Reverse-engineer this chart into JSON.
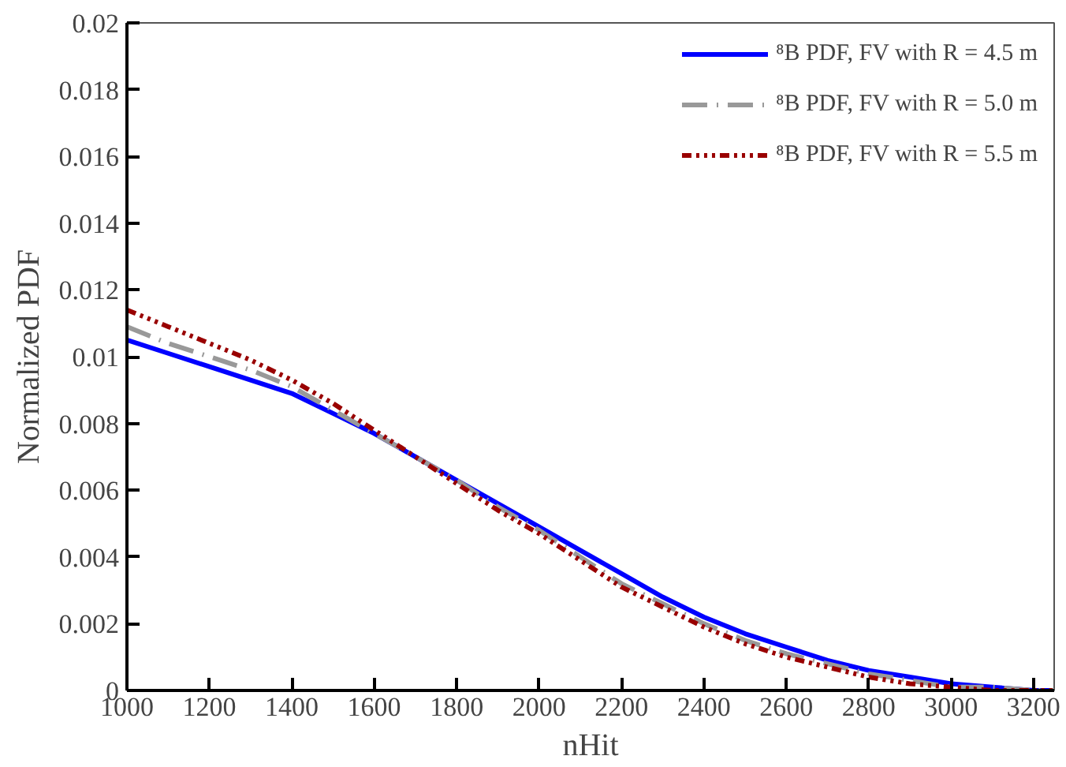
{
  "chart_data": {
    "type": "line",
    "xlabel": "nHit",
    "ylabel": "Normalized PDF",
    "x": [
      1000,
      1100,
      1200,
      1300,
      1400,
      1500,
      1600,
      1700,
      1800,
      1900,
      2000,
      2100,
      2200,
      2300,
      2400,
      2500,
      2600,
      2700,
      2800,
      2900,
      3000,
      3100,
      3200,
      3250
    ],
    "xlim": [
      1000,
      3250
    ],
    "ylim": [
      0,
      0.02
    ],
    "xticks": [
      1000,
      1200,
      1400,
      1600,
      1800,
      2000,
      2200,
      2400,
      2600,
      2800,
      3000,
      3200
    ],
    "yticks": [
      0,
      0.002,
      0.004,
      0.006,
      0.008,
      0.01,
      0.012,
      0.014,
      0.016,
      0.018,
      0.02
    ],
    "grid": false,
    "legend": "top right",
    "marker": "none",
    "series": [
      {
        "name": "⁸B PDF, FV with R = 4.5 m",
        "color": "#0000ff",
        "line_style": "solid",
        "values": [
          0.0105,
          0.0101,
          0.0097,
          0.0093,
          0.0089,
          0.0083,
          0.0077,
          0.007,
          0.0063,
          0.0056,
          0.0049,
          0.0042,
          0.0035,
          0.0028,
          0.0022,
          0.0017,
          0.0013,
          0.0009,
          0.0006,
          0.0004,
          0.0002,
          0.0001,
          0,
          0
        ]
      },
      {
        "name": "⁸B PDF, FV with R = 5.0 m",
        "color": "#999999",
        "line_style": "dashed",
        "values": [
          0.0109,
          0.0104,
          0.01,
          0.0096,
          0.0091,
          0.0084,
          0.0077,
          0.007,
          0.0063,
          0.0055,
          0.0048,
          0.004,
          0.0032,
          0.0026,
          0.002,
          0.0015,
          0.0011,
          0.0008,
          0.0005,
          0.0003,
          0.0001,
          0.0001,
          0,
          0
        ]
      },
      {
        "name": "⁸B PDF, FV with R = 5.5 m",
        "color": "#990000",
        "line_style": "dotted",
        "values": [
          0.0114,
          0.0109,
          0.0104,
          0.0099,
          0.0093,
          0.0086,
          0.0078,
          0.007,
          0.0062,
          0.0054,
          0.0047,
          0.0039,
          0.0031,
          0.0025,
          0.0019,
          0.0014,
          0.001,
          0.0007,
          0.0004,
          0.0002,
          0.0001,
          0,
          0,
          0
        ]
      }
    ]
  }
}
